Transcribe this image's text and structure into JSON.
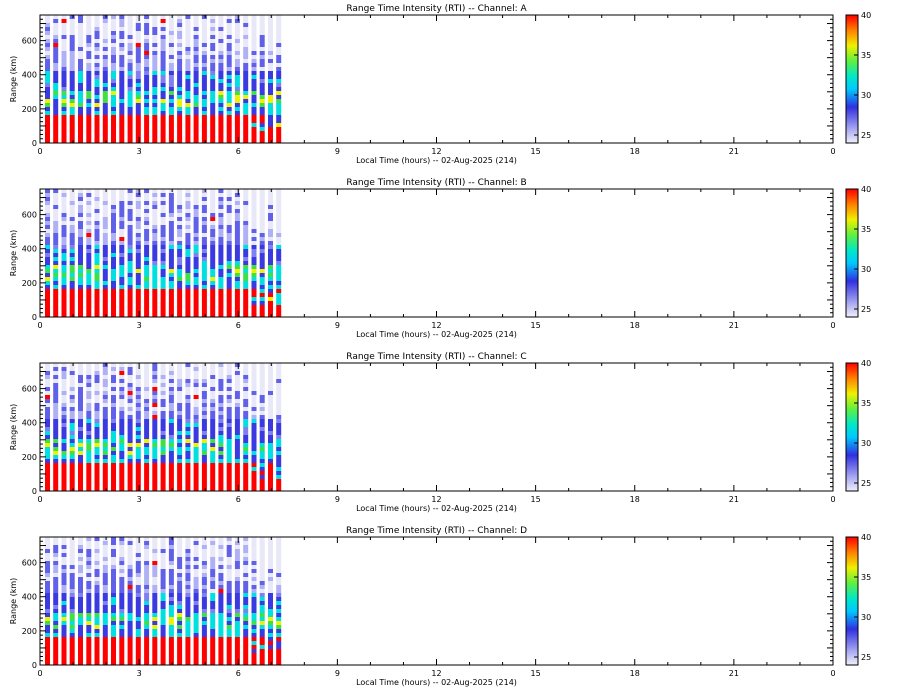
{
  "colors": {
    "low": "#e8e8f8",
    "mid_blue": "#3a3ae0",
    "cyan": "#00e0e0",
    "green": "#40e040",
    "yellow": "#f0f000",
    "orange": "#ff8000",
    "red": "#ff0000"
  },
  "chart_data": [
    {
      "type": "heatmap",
      "title": "Range Time Intensity (RTI) -- Channel: A",
      "xlabel": "Local Time (hours) -- 02-Aug-2025 (214)",
      "ylabel": "Range (km)",
      "xlim": [
        0,
        24
      ],
      "ylim": [
        0,
        750
      ],
      "xticks": [
        "0",
        "3",
        "6",
        "9",
        "12",
        "15",
        "18",
        "21",
        "0"
      ],
      "yticks": [
        "0",
        "200",
        "400",
        "600"
      ],
      "ytick_values": [
        0,
        200,
        400,
        600
      ],
      "colorbar": {
        "range": [
          24,
          40
        ],
        "ticks": [
          "25",
          "30",
          "35",
          "40"
        ],
        "tick_values": [
          25,
          30,
          35,
          40
        ]
      },
      "data_extent_hours": [
        0,
        7.4
      ],
      "red_band_top_km": 160
    },
    {
      "type": "heatmap",
      "title": "Range Time Intensity (RTI) -- Channel: B",
      "xlabel": "Local Time (hours) -- 02-Aug-2025 (214)",
      "ylabel": "Range (km)",
      "xlim": [
        0,
        24
      ],
      "ylim": [
        0,
        750
      ],
      "xticks": [
        "0",
        "3",
        "6",
        "9",
        "12",
        "15",
        "18",
        "21",
        "0"
      ],
      "yticks": [
        "0",
        "200",
        "400",
        "600"
      ],
      "ytick_values": [
        0,
        200,
        400,
        600
      ],
      "colorbar": {
        "range": [
          24,
          40
        ],
        "ticks": [
          "25",
          "30",
          "35",
          "40"
        ],
        "tick_values": [
          25,
          30,
          35,
          40
        ]
      },
      "data_extent_hours": [
        0,
        7.4
      ],
      "red_band_top_km": 160
    },
    {
      "type": "heatmap",
      "title": "Range Time Intensity (RTI) -- Channel: C",
      "xlabel": "Local Time (hours) -- 02-Aug-2025 (214)",
      "ylabel": "Range (km)",
      "xlim": [
        0,
        24
      ],
      "ylim": [
        0,
        750
      ],
      "xticks": [
        "0",
        "3",
        "6",
        "9",
        "12",
        "15",
        "18",
        "21",
        "0"
      ],
      "yticks": [
        "0",
        "200",
        "400",
        "600"
      ],
      "ytick_values": [
        0,
        200,
        400,
        600
      ],
      "colorbar": {
        "range": [
          24,
          40
        ],
        "ticks": [
          "25",
          "30",
          "35",
          "40"
        ],
        "tick_values": [
          25,
          30,
          35,
          40
        ]
      },
      "data_extent_hours": [
        0,
        7.4
      ],
      "red_band_top_km": 160
    },
    {
      "type": "heatmap",
      "title": "Range Time Intensity (RTI) -- Channel: D",
      "xlabel": "Local Time (hours) -- 02-Aug-2025 (214)",
      "ylabel": "Range (km)",
      "xlim": [
        0,
        24
      ],
      "ylim": [
        0,
        750
      ],
      "xticks": [
        "0",
        "3",
        "6",
        "9",
        "12",
        "15",
        "18",
        "21",
        "0"
      ],
      "yticks": [
        "0",
        "200",
        "400",
        "600"
      ],
      "ytick_values": [
        0,
        200,
        400,
        600
      ],
      "colorbar": {
        "range": [
          24,
          40
        ],
        "ticks": [
          "25",
          "30",
          "35",
          "40"
        ],
        "tick_values": [
          25,
          30,
          35,
          40
        ]
      },
      "data_extent_hours": [
        0,
        7.4
      ],
      "red_band_top_km": 160
    }
  ]
}
